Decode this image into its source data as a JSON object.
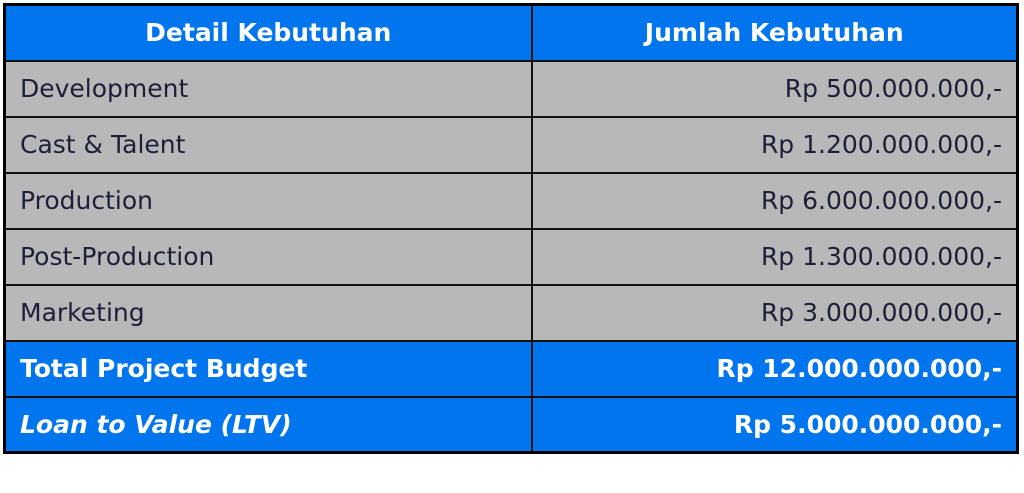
{
  "table": {
    "headers": [
      "Detail Kebutuhan",
      "Jumlah Kebutuhan"
    ],
    "rows": [
      {
        "item": "Development",
        "amount": "Rp 500.000.000,-"
      },
      {
        "item": "Cast & Talent",
        "amount": "Rp 1.200.000.000,-"
      },
      {
        "item": "Production",
        "amount": "Rp 6.000.000.000,-"
      },
      {
        "item": "Post-Production",
        "amount": "Rp 1.300.000.000,-"
      },
      {
        "item": "Marketing",
        "amount": "Rp 3.000.000.000,-"
      }
    ],
    "total": {
      "item": "Total Project Budget",
      "amount": "Rp 12.000.000.000,-"
    },
    "ltv": {
      "item": "Loan to Value (LTV)",
      "amount": "Rp 5.000.000.000,-"
    }
  },
  "colors": {
    "header": "#0075ED",
    "row": "#B8B8B8",
    "text": "#1C1F3A"
  }
}
